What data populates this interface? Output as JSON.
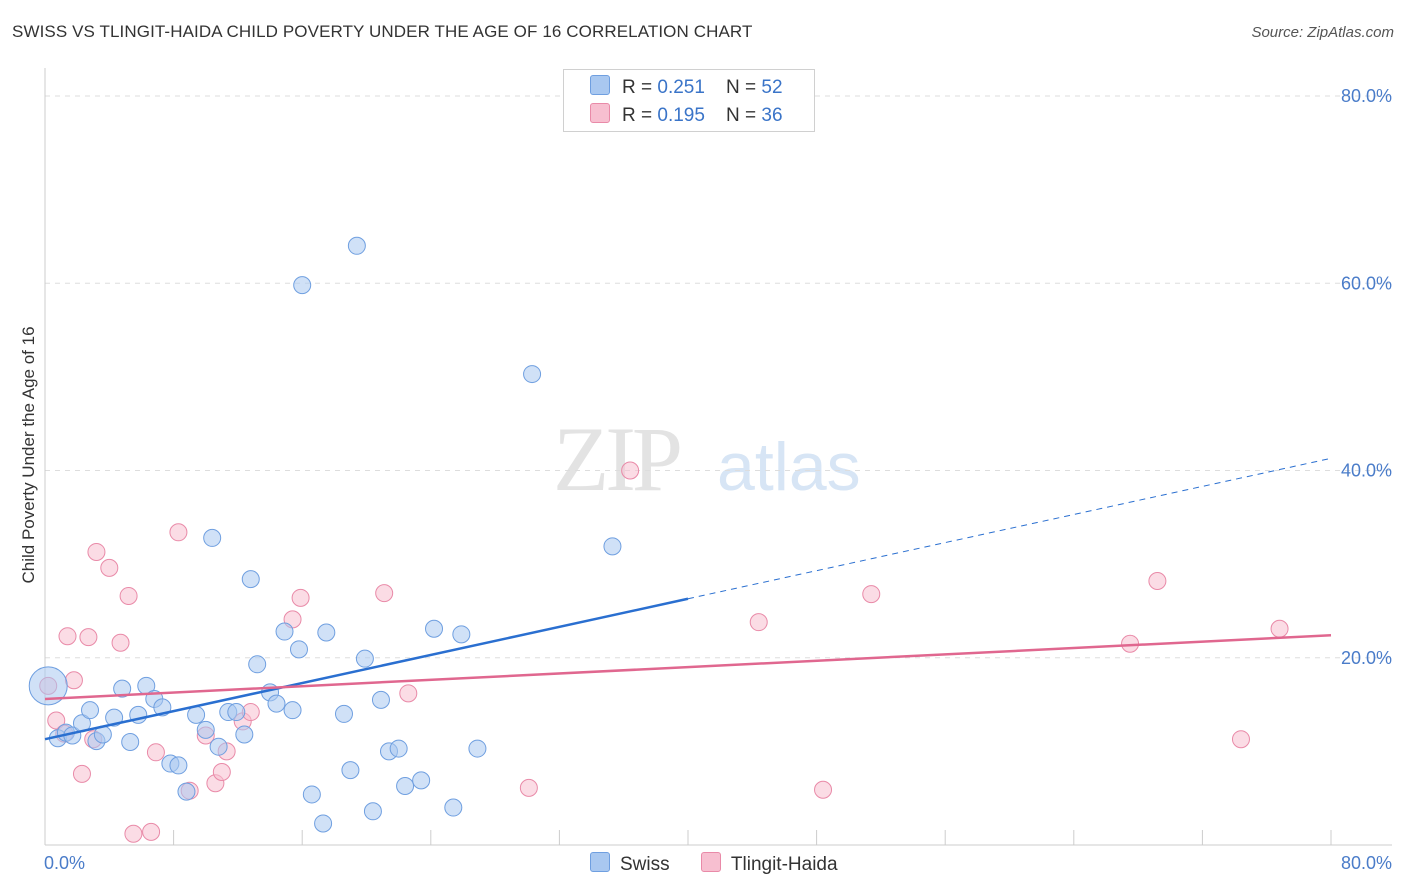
{
  "title": "SWISS VS TLINGIT-HAIDA CHILD POVERTY UNDER THE AGE OF 16 CORRELATION CHART",
  "source": "Source: ZipAtlas.com",
  "watermark": {
    "zip": "ZIP",
    "atlas": "atlas"
  },
  "legend": {
    "rows": [
      {
        "r_label": "R = ",
        "r_value": "0.251",
        "n_label": "N = ",
        "n_value": "52"
      },
      {
        "r_label": "R = ",
        "r_value": "0.195",
        "n_label": "N = ",
        "n_value": "36"
      }
    ]
  },
  "bottom_legend": [
    "Swiss",
    "Tlingit-Haida"
  ],
  "colors": {
    "swiss_fill": "#a9c8f0",
    "swiss_stroke": "#6f9fe0",
    "swiss_line": "#2a6fd0",
    "tlingit_fill": "#f7bfd0",
    "tlingit_stroke": "#e98aa8",
    "tlingit_line": "#e0678f",
    "grid": "#dddddd",
    "tick_label": "#4a7cc9"
  },
  "chart_data": {
    "type": "scatter",
    "title": "SWISS VS TLINGIT-HAIDA CHILD POVERTY UNDER THE AGE OF 16 CORRELATION CHART",
    "xlabel": "",
    "ylabel": "Child Poverty Under the Age of 16",
    "xlim": [
      0,
      80
    ],
    "ylim": [
      0,
      80
    ],
    "x_tick_labels": [
      "0.0%",
      "80.0%"
    ],
    "y_ticks": [
      20,
      40,
      60,
      80
    ],
    "y_tick_labels": [
      "20.0%",
      "40.0%",
      "60.0%",
      "80.0%"
    ],
    "grid": true,
    "legend_position": "top-center",
    "series": [
      {
        "name": "Swiss",
        "points": [
          [
            0.2,
            17.0
          ],
          [
            0.8,
            11.4
          ],
          [
            1.3,
            12.0
          ],
          [
            1.7,
            11.7
          ],
          [
            2.3,
            13.0
          ],
          [
            2.8,
            14.4
          ],
          [
            3.2,
            11.1
          ],
          [
            3.6,
            11.8
          ],
          [
            4.3,
            13.6
          ],
          [
            4.8,
            16.7
          ],
          [
            5.3,
            11.0
          ],
          [
            5.8,
            13.9
          ],
          [
            6.3,
            17.0
          ],
          [
            6.8,
            15.6
          ],
          [
            7.3,
            14.7
          ],
          [
            7.8,
            8.7
          ],
          [
            8.3,
            8.5
          ],
          [
            8.8,
            5.7
          ],
          [
            9.4,
            13.9
          ],
          [
            10.0,
            12.3
          ],
          [
            10.4,
            32.8
          ],
          [
            10.8,
            10.5
          ],
          [
            11.4,
            14.2
          ],
          [
            11.9,
            14.2
          ],
          [
            12.4,
            11.8
          ],
          [
            12.8,
            28.4
          ],
          [
            13.2,
            19.3
          ],
          [
            14.0,
            16.3
          ],
          [
            14.4,
            15.1
          ],
          [
            14.9,
            22.8
          ],
          [
            15.4,
            14.4
          ],
          [
            15.8,
            20.9
          ],
          [
            16.0,
            59.8
          ],
          [
            16.6,
            5.4
          ],
          [
            17.5,
            22.7
          ],
          [
            17.3,
            2.3
          ],
          [
            18.6,
            14.0
          ],
          [
            19.4,
            64.0
          ],
          [
            19.0,
            8.0
          ],
          [
            19.9,
            19.9
          ],
          [
            20.4,
            3.6
          ],
          [
            20.9,
            15.5
          ],
          [
            21.4,
            10.0
          ],
          [
            22.0,
            10.3
          ],
          [
            22.4,
            6.3
          ],
          [
            23.4,
            6.9
          ],
          [
            24.2,
            23.1
          ],
          [
            25.4,
            4.0
          ],
          [
            25.9,
            22.5
          ],
          [
            26.9,
            10.3
          ],
          [
            30.3,
            50.3
          ],
          [
            35.3,
            31.9
          ]
        ],
        "trend": {
          "x0": 0,
          "y0": 11.3,
          "x1": 40,
          "y1": 26.3,
          "x_dash_end": 80,
          "y_dash_end": 41.3
        }
      },
      {
        "name": "Tlingit-Haida",
        "points": [
          [
            0.2,
            17.0
          ],
          [
            0.7,
            13.3
          ],
          [
            1.2,
            11.9
          ],
          [
            1.4,
            22.3
          ],
          [
            1.8,
            17.6
          ],
          [
            2.3,
            7.6
          ],
          [
            2.7,
            22.2
          ],
          [
            3.0,
            11.3
          ],
          [
            3.2,
            31.3
          ],
          [
            4.0,
            29.6
          ],
          [
            4.7,
            21.6
          ],
          [
            5.2,
            26.6
          ],
          [
            5.5,
            1.2
          ],
          [
            6.6,
            1.4
          ],
          [
            6.9,
            9.9
          ],
          [
            8.3,
            33.4
          ],
          [
            9.0,
            5.8
          ],
          [
            10.0,
            11.7
          ],
          [
            10.6,
            6.6
          ],
          [
            11.0,
            7.8
          ],
          [
            11.3,
            10.0
          ],
          [
            12.3,
            13.2
          ],
          [
            12.8,
            14.2
          ],
          [
            15.4,
            24.1
          ],
          [
            15.9,
            26.4
          ],
          [
            21.1,
            26.9
          ],
          [
            22.6,
            16.2
          ],
          [
            30.1,
            6.1
          ],
          [
            36.4,
            40.0
          ],
          [
            44.4,
            23.8
          ],
          [
            48.4,
            5.9
          ],
          [
            51.4,
            26.8
          ],
          [
            67.5,
            21.5
          ],
          [
            69.2,
            28.2
          ],
          [
            74.4,
            11.3
          ],
          [
            76.8,
            23.1
          ]
        ],
        "trend": {
          "x0": 0,
          "y0": 15.6,
          "x1": 80,
          "y1": 22.4
        }
      }
    ]
  }
}
